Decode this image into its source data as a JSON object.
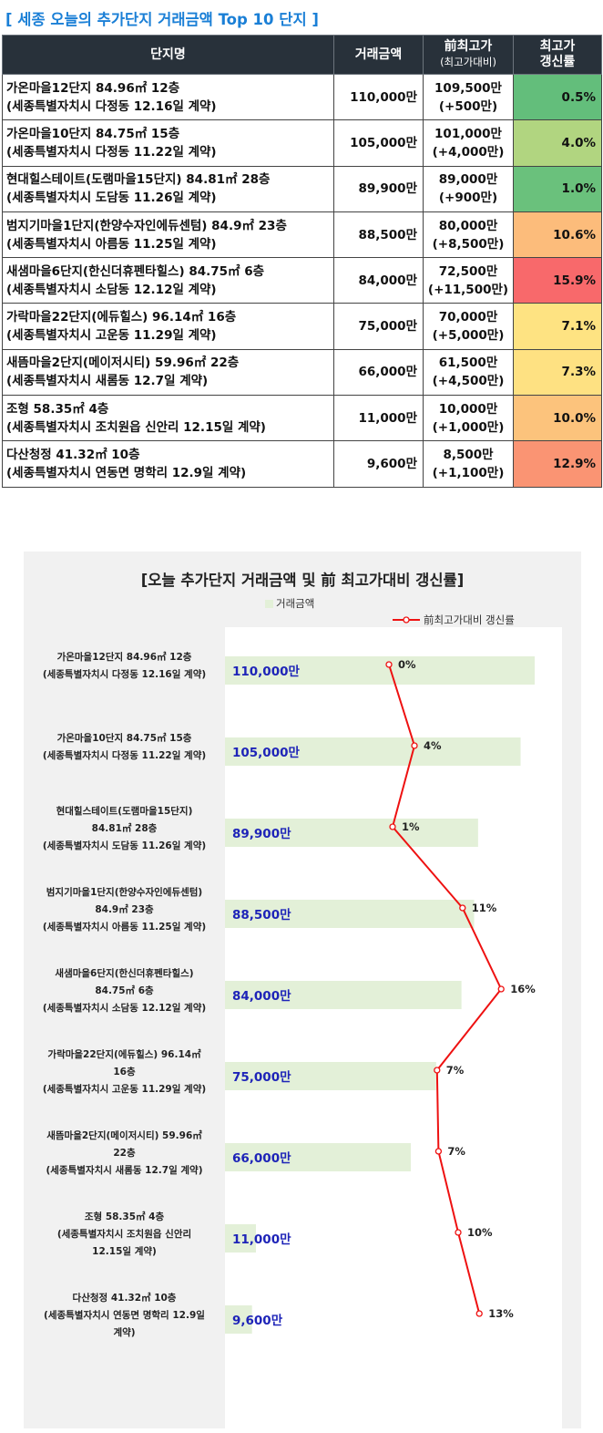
{
  "table": {
    "title": "[ 세종 오늘의 추가단지 거래금액 Top 10 단지 ]",
    "headers": {
      "name": "단지명",
      "price": "거래금액",
      "prev_line1": "前최고가",
      "prev_line2": "(최고가대비)",
      "rate_line1": "최고가",
      "rate_line2": "갱신률"
    },
    "rows": [
      {
        "name1": "가온마을12단지 84.96㎡ 12층",
        "name2": "(세종특별자치시 다정동 12.16일 계약)",
        "price": "110,000만",
        "prev1": "109,500만",
        "prev2": "(+500만)",
        "rate": "0.5%",
        "color": "#63be7b"
      },
      {
        "name1": "가온마을10단지 84.75㎡ 15층",
        "name2": "(세종특별자치시 다정동 11.22일 계약)",
        "price": "105,000만",
        "prev1": "101,000만",
        "prev2": "(+4,000만)",
        "rate": "4.0%",
        "color": "#b1d580"
      },
      {
        "name1": "현대힐스테이트(도램마을15단지) 84.81㎡ 28층",
        "name2": "(세종특별자치시 도담동 11.26일 계약)",
        "price": "89,900만",
        "prev1": "89,000만",
        "prev2": "(+900만)",
        "rate": "1.0%",
        "color": "#6ac17c"
      },
      {
        "name1": "범지기마을1단지(한양수자인에듀센텀) 84.9㎡ 23층",
        "name2": "(세종특별자치시 아름동 11.25일 계약)",
        "price": "88,500만",
        "prev1": "80,000만",
        "prev2": "(+8,500만)",
        "rate": "10.6%",
        "color": "#fcbc7b"
      },
      {
        "name1": "새샘마을6단지(한신더휴펜타힐스) 84.75㎡ 6층",
        "name2": "(세종특별자치시 소담동 12.12일 계약)",
        "price": "84,000만",
        "prev1": "72,500만",
        "prev2": "(+11,500만)",
        "rate": "15.9%",
        "color": "#f8696b"
      },
      {
        "name1": "가락마을22단지(에듀힐스) 96.14㎡ 16층",
        "name2": "(세종특별자치시 고운동 11.29일 계약)",
        "price": "75,000만",
        "prev1": "70,000만",
        "prev2": "(+5,000만)",
        "rate": "7.1%",
        "color": "#fee382"
      },
      {
        "name1": "새뜸마을2단지(메이저시티) 59.96㎡ 22층",
        "name2": "(세종특별자치시 새롬동 12.7일 계약)",
        "price": "66,000만",
        "prev1": "61,500만",
        "prev2": "(+4,500만)",
        "rate": "7.3%",
        "color": "#fee182"
      },
      {
        "name1": "조형 58.35㎡ 4층",
        "name2": "(세종특별자치시 조치원읍 신안리 12.15일 계약)",
        "price": "11,000만",
        "prev1": "10,000만",
        "prev2": "(+1,000만)",
        "rate": "10.0%",
        "color": "#fcc37c"
      },
      {
        "name1": "다산청정 41.32㎡ 10층",
        "name2": "(세종특별자치시 연동면 명학리 12.9일 계약)",
        "price": "9,600만",
        "prev1": "8,500만",
        "prev2": "(+1,100만)",
        "rate": "12.9%",
        "color": "#fa9473"
      }
    ]
  },
  "chart_data": {
    "type": "bar",
    "title": "[오늘 추가단지 거래금액 및 前 최고가대비 갱신률]",
    "legend": {
      "bar": "거래금액",
      "line": "前최고가대비 갱신률"
    },
    "categories": [
      [
        "가온마을12단지 84.96㎡ 12층",
        "(세종특별자치시 다정동 12.16일 계약)"
      ],
      [
        "가온마을10단지 84.75㎡ 15층",
        "(세종특별자치시 다정동 11.22일 계약)"
      ],
      [
        "현대힐스테이트(도램마을15단지)",
        "84.81㎡ 28층",
        "(세종특별자치시 도담동 11.26일 계약)"
      ],
      [
        "범지기마을1단지(한양수자인에듀센텀)",
        "84.9㎡ 23층",
        "(세종특별자치시 아름동 11.25일 계약)"
      ],
      [
        "새샘마을6단지(한신더휴펜타힐스)",
        "84.75㎡ 6층",
        "(세종특별자치시 소담동 12.12일 계약)"
      ],
      [
        "가락마을22단지(에듀힐스) 96.14㎡",
        "16층",
        "(세종특별자치시 고운동 11.29일 계약)"
      ],
      [
        "새뜸마을2단지(메이저시티) 59.96㎡",
        "22층",
        "(세종특별자치시 새롬동 12.7일 계약)"
      ],
      [
        "조형 58.35㎡ 4층",
        "(세종특별자치시 조치원읍 신안리",
        "12.15일 계약)"
      ],
      [
        "다산청정 41.32㎡ 10층",
        "(세종특별자치시 연동면 명학리 12.9일",
        "계약)"
      ]
    ],
    "series": [
      {
        "name": "거래금액",
        "kind": "bar",
        "values": [
          110000,
          105000,
          89900,
          88500,
          84000,
          75000,
          66000,
          11000,
          9600
        ],
        "labels": [
          "110,000만",
          "105,000만",
          "89,900만",
          "88,500만",
          "84,000만",
          "75,000만",
          "66,000만",
          "11,000만",
          "9,600만"
        ]
      },
      {
        "name": "前최고가대비 갱신률",
        "kind": "line",
        "values": [
          0.5,
          4.0,
          1.0,
          10.6,
          15.9,
          7.1,
          7.3,
          10.0,
          12.9
        ],
        "labels": [
          "0%",
          "4%",
          "1%",
          "11%",
          "16%",
          "7%",
          "7%",
          "10%",
          "13%"
        ]
      }
    ],
    "bar_color": "#e3f0d8",
    "line_color": "#ee1111",
    "value_label_color": "#1e24b8"
  }
}
